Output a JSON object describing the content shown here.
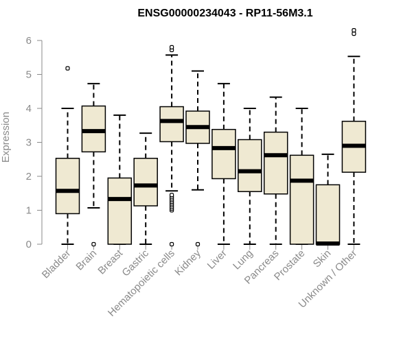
{
  "chart_data": {
    "type": "boxplot",
    "title": "ENSG00000234043 - RP11-56M3.1",
    "xlabel": "",
    "ylabel": "Expression",
    "ylim": [
      0,
      6
    ],
    "yticks": [
      0,
      1,
      2,
      3,
      4,
      5,
      6
    ],
    "box_fill": "#efe9d2",
    "categories": [
      "Bladder",
      "Brain",
      "Breast",
      "Gastric",
      "Hematopoietic cells",
      "Kidney",
      "Liver",
      "Lung",
      "Pancreas",
      "Prostate",
      "Skin",
      "Unknown / Other"
    ],
    "series": [
      {
        "name": "Bladder",
        "whisker_low": 0,
        "q1": 0.9,
        "median": 1.57,
        "q3": 2.53,
        "whisker_high": 4.0,
        "outliers": [
          5.18
        ]
      },
      {
        "name": "Brain",
        "whisker_low": 1.07,
        "q1": 2.72,
        "median": 3.33,
        "q3": 4.07,
        "whisker_high": 4.73,
        "outliers": [
          0.0
        ]
      },
      {
        "name": "Breast",
        "whisker_low": 0,
        "q1": 0,
        "median": 1.33,
        "q3": 1.95,
        "whisker_high": 3.8,
        "outliers": []
      },
      {
        "name": "Gastric",
        "whisker_low": 0,
        "q1": 1.13,
        "median": 1.73,
        "q3": 2.53,
        "whisker_high": 3.27,
        "outliers": []
      },
      {
        "name": "Hematopoietic cells",
        "whisker_low": 1.57,
        "q1": 3.02,
        "median": 3.63,
        "q3": 4.05,
        "whisker_high": 5.57,
        "outliers": [
          0.0,
          1.0,
          1.05,
          1.1,
          1.15,
          1.2,
          1.25,
          1.3,
          1.35,
          1.4,
          1.45,
          5.72,
          5.8
        ]
      },
      {
        "name": "Kidney",
        "whisker_low": 1.6,
        "q1": 2.97,
        "median": 3.45,
        "q3": 3.92,
        "whisker_high": 5.1,
        "outliers": [
          0.0
        ]
      },
      {
        "name": "Liver",
        "whisker_low": 0,
        "q1": 1.93,
        "median": 2.83,
        "q3": 3.38,
        "whisker_high": 4.73,
        "outliers": []
      },
      {
        "name": "Lung",
        "whisker_low": 0,
        "q1": 1.55,
        "median": 2.15,
        "q3": 3.08,
        "whisker_high": 4.0,
        "outliers": []
      },
      {
        "name": "Pancreas",
        "whisker_low": 0,
        "q1": 1.48,
        "median": 2.62,
        "q3": 3.3,
        "whisker_high": 4.33,
        "outliers": []
      },
      {
        "name": "Prostate",
        "whisker_low": 0,
        "q1": 0,
        "median": 1.87,
        "q3": 2.62,
        "whisker_high": 4.0,
        "outliers": []
      },
      {
        "name": "Skin",
        "whisker_low": 0,
        "q1": 0,
        "median": 0.02,
        "q3": 1.75,
        "whisker_high": 2.65,
        "outliers": []
      },
      {
        "name": "Unknown / Other",
        "whisker_low": 0,
        "q1": 2.12,
        "median": 2.9,
        "q3": 3.62,
        "whisker_high": 5.53,
        "outliers": [
          6.2,
          6.3
        ]
      }
    ]
  }
}
